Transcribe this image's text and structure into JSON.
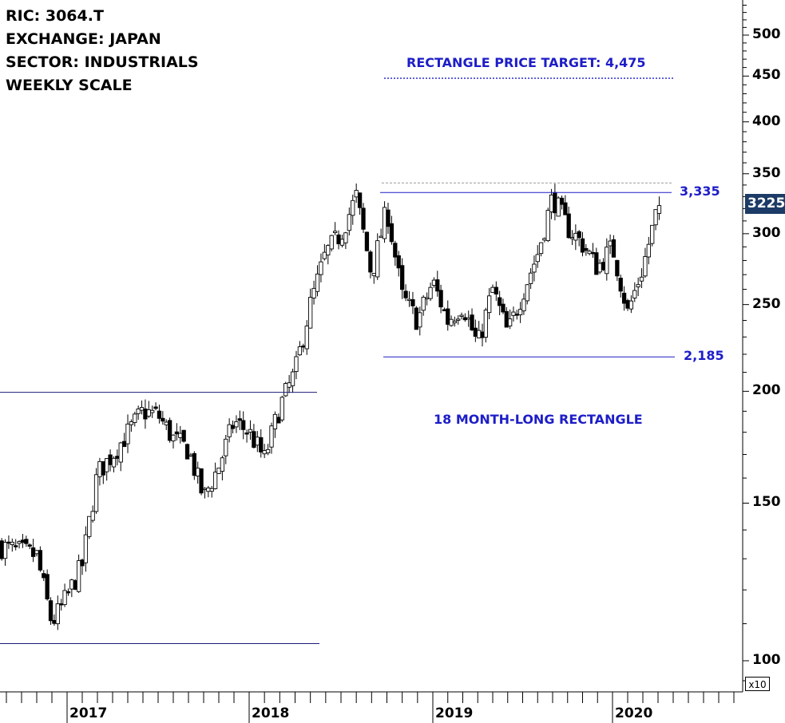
{
  "info": {
    "ric": "RIC: 3064.T",
    "exchange": "EXCHANGE: JAPAN",
    "sector": "SECTOR: INDUSTRIALS",
    "scale": "WEEKLY SCALE"
  },
  "annotations": {
    "price_target": "RECTANGLE PRICE TARGET: 4,475",
    "upper_boundary": "3,335",
    "lower_boundary": "2,185",
    "pattern": "18 MONTH-LONG RECTANGLE"
  },
  "last_price_label": "3225",
  "scale_multiplier": "x10",
  "colors": {
    "annotation": "#1d1dc8",
    "price_box": "#1c3b66",
    "bearish_candle": "#000000",
    "bullish_candle": "#ffffff"
  },
  "chart_data": {
    "type": "candlestick",
    "ticker": "3064.T",
    "y_scale": "log",
    "ylim": [
      94,
      545
    ],
    "y_ticks": [
      100,
      150,
      200,
      250,
      300,
      350,
      400,
      450,
      500
    ],
    "x_ticks": [
      "2017",
      "2018",
      "2019",
      "2020"
    ],
    "x_range": [
      "2016-08",
      "2020-09"
    ],
    "levels": {
      "rectangle_top": 333.5,
      "rectangle_bottom": 218.5,
      "price_target": 447.5,
      "prior_resistance": 199.5,
      "prior_support": 104.5
    },
    "close_path": [
      [
        "2016-08",
        135
      ],
      [
        "2016-11",
        131
      ],
      [
        "2016-12",
        110
      ],
      [
        "2017-01",
        118
      ],
      [
        "2017-02",
        128
      ],
      [
        "2017-03",
        162
      ],
      [
        "2017-04",
        170
      ],
      [
        "2017-06",
        190
      ],
      [
        "2017-07",
        188
      ],
      [
        "2017-08",
        177
      ],
      [
        "2017-09",
        172
      ],
      [
        "2017-10",
        152
      ],
      [
        "2017-11",
        165
      ],
      [
        "2017-12",
        185
      ],
      [
        "2018-01",
        180
      ],
      [
        "2018-02",
        168
      ],
      [
        "2018-03",
        192
      ],
      [
        "2018-04",
        210
      ],
      [
        "2018-05",
        250
      ],
      [
        "2018-06",
        285
      ],
      [
        "2018-07",
        300
      ],
      [
        "2018-08",
        330
      ],
      [
        "2018-09",
        270
      ],
      [
        "2018-10",
        320
      ],
      [
        "2018-11",
        255
      ],
      [
        "2018-12",
        240
      ],
      [
        "2019-01",
        265
      ],
      [
        "2019-02",
        240
      ],
      [
        "2019-03",
        250
      ],
      [
        "2019-04",
        225
      ],
      [
        "2019-05",
        260
      ],
      [
        "2019-06",
        232
      ],
      [
        "2019-07",
        258
      ],
      [
        "2019-08",
        285
      ],
      [
        "2019-09",
        330
      ],
      [
        "2019-10",
        305
      ],
      [
        "2019-11",
        292
      ],
      [
        "2019-12",
        275
      ],
      [
        "2020-01",
        290
      ],
      [
        "2020-02",
        245
      ],
      [
        "2020-03",
        275
      ],
      [
        "2020-04",
        322
      ]
    ],
    "last_price": 322.5
  }
}
